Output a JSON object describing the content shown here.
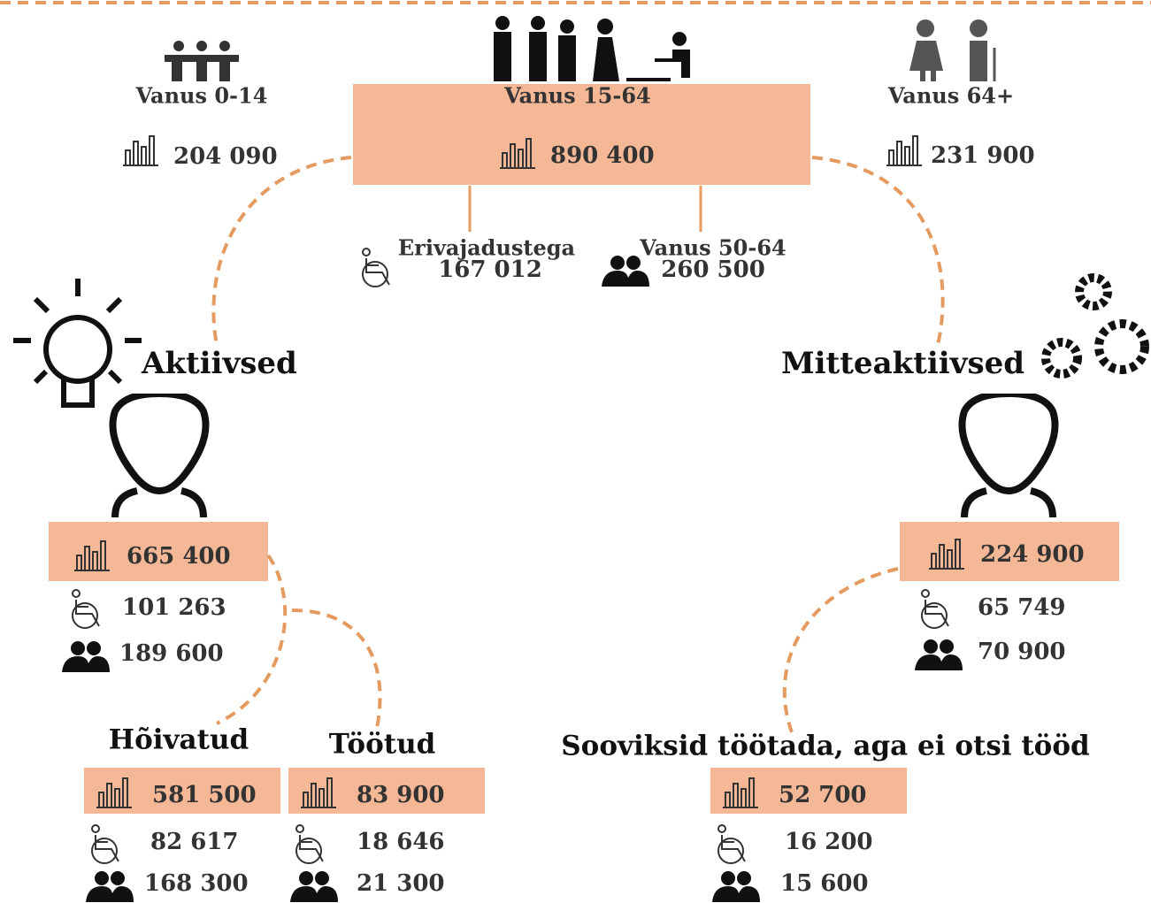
{
  "age_0_14": {
    "label": "Vanus 0-14",
    "value": "204 090"
  },
  "age_15_64": {
    "label": "Vanus 15-64",
    "value": "890 400"
  },
  "age_64_plus": {
    "label": "Vanus 64+",
    "value": "231 900"
  },
  "special_needs": {
    "label": "Erivajadustega",
    "value": "167 012"
  },
  "age_50_64": {
    "label": "Vanus 50-64",
    "value": "260 500"
  },
  "active": {
    "title": "Aktiivsed",
    "total": "665 400",
    "special_needs": "101 263",
    "age_50_64": "189 600"
  },
  "inactive": {
    "title": "Mitteaktiivsed",
    "total": "224 900",
    "special_needs": "65 749",
    "age_50_64": "70 900"
  },
  "employed": {
    "title": "Hõivatud",
    "total": "581 500",
    "special_needs": "82 617",
    "age_50_64": "168 300"
  },
  "unemployed": {
    "title": "Töötud",
    "total": "83 900",
    "special_needs": "18 646",
    "age_50_64": "21 300"
  },
  "would_work": {
    "title": "Sooviksid töötada, aga ei otsi tööd",
    "total": "52 700",
    "special_needs": "16 200",
    "age_50_64": "15 600"
  }
}
